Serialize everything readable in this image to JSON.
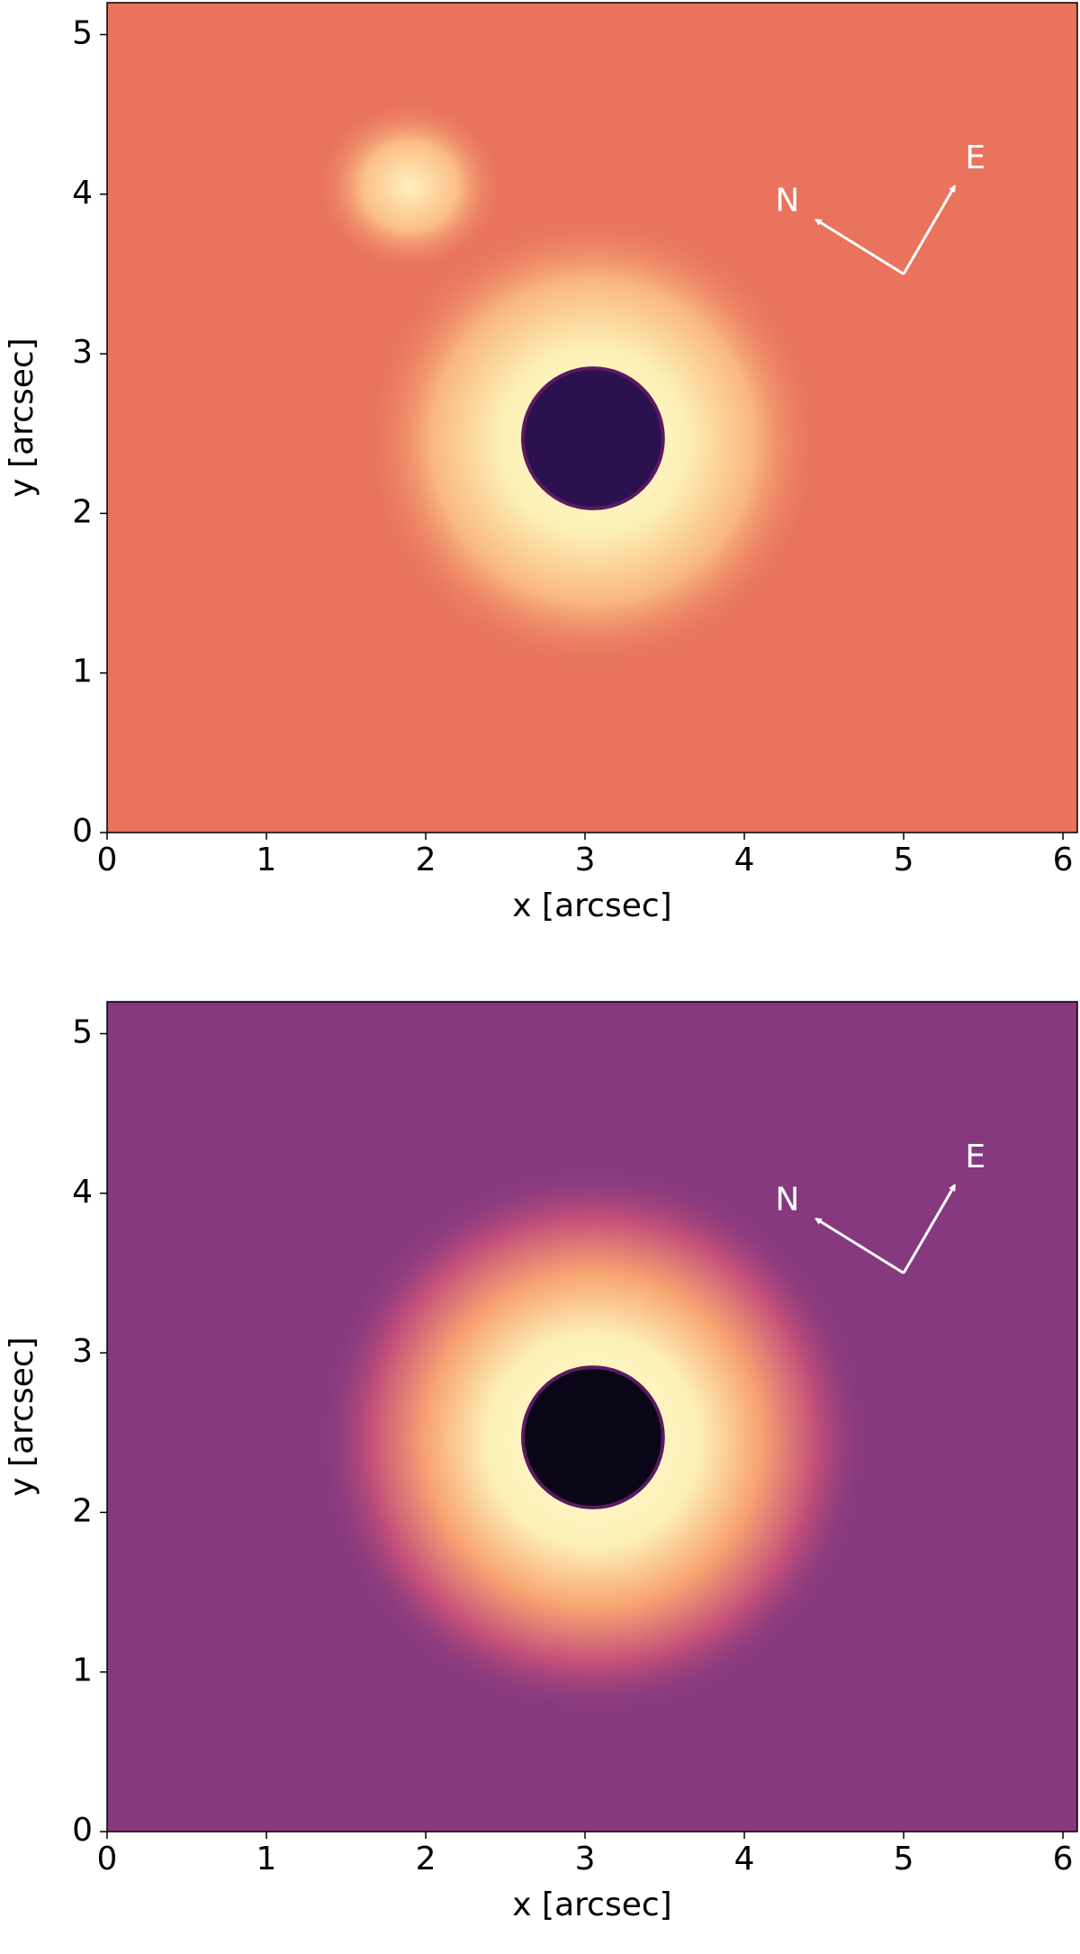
{
  "chart_data": [
    {
      "type": "image",
      "xlabel": "x [arcsec]",
      "ylabel": "y [arcsec]",
      "xlim": [
        0,
        6.09
      ],
      "ylim": [
        0,
        5.2
      ],
      "xticks": [
        0,
        1,
        2,
        3,
        4,
        5,
        6
      ],
      "yticks": [
        0,
        1,
        2,
        3,
        4,
        5
      ],
      "annotations": [
        "N",
        "E"
      ],
      "colormap": "magma"
    },
    {
      "type": "image",
      "xlabel": "x [arcsec]",
      "ylabel": "y [arcsec]",
      "xlim": [
        0,
        6.09
      ],
      "ylim": [
        0,
        5.2
      ],
      "xticks": [
        0,
        1,
        2,
        3,
        4,
        5,
        6
      ],
      "yticks": [
        0,
        1,
        2,
        3,
        4,
        5
      ],
      "annotations": [
        "N",
        "E"
      ],
      "colormap": "magma"
    }
  ]
}
